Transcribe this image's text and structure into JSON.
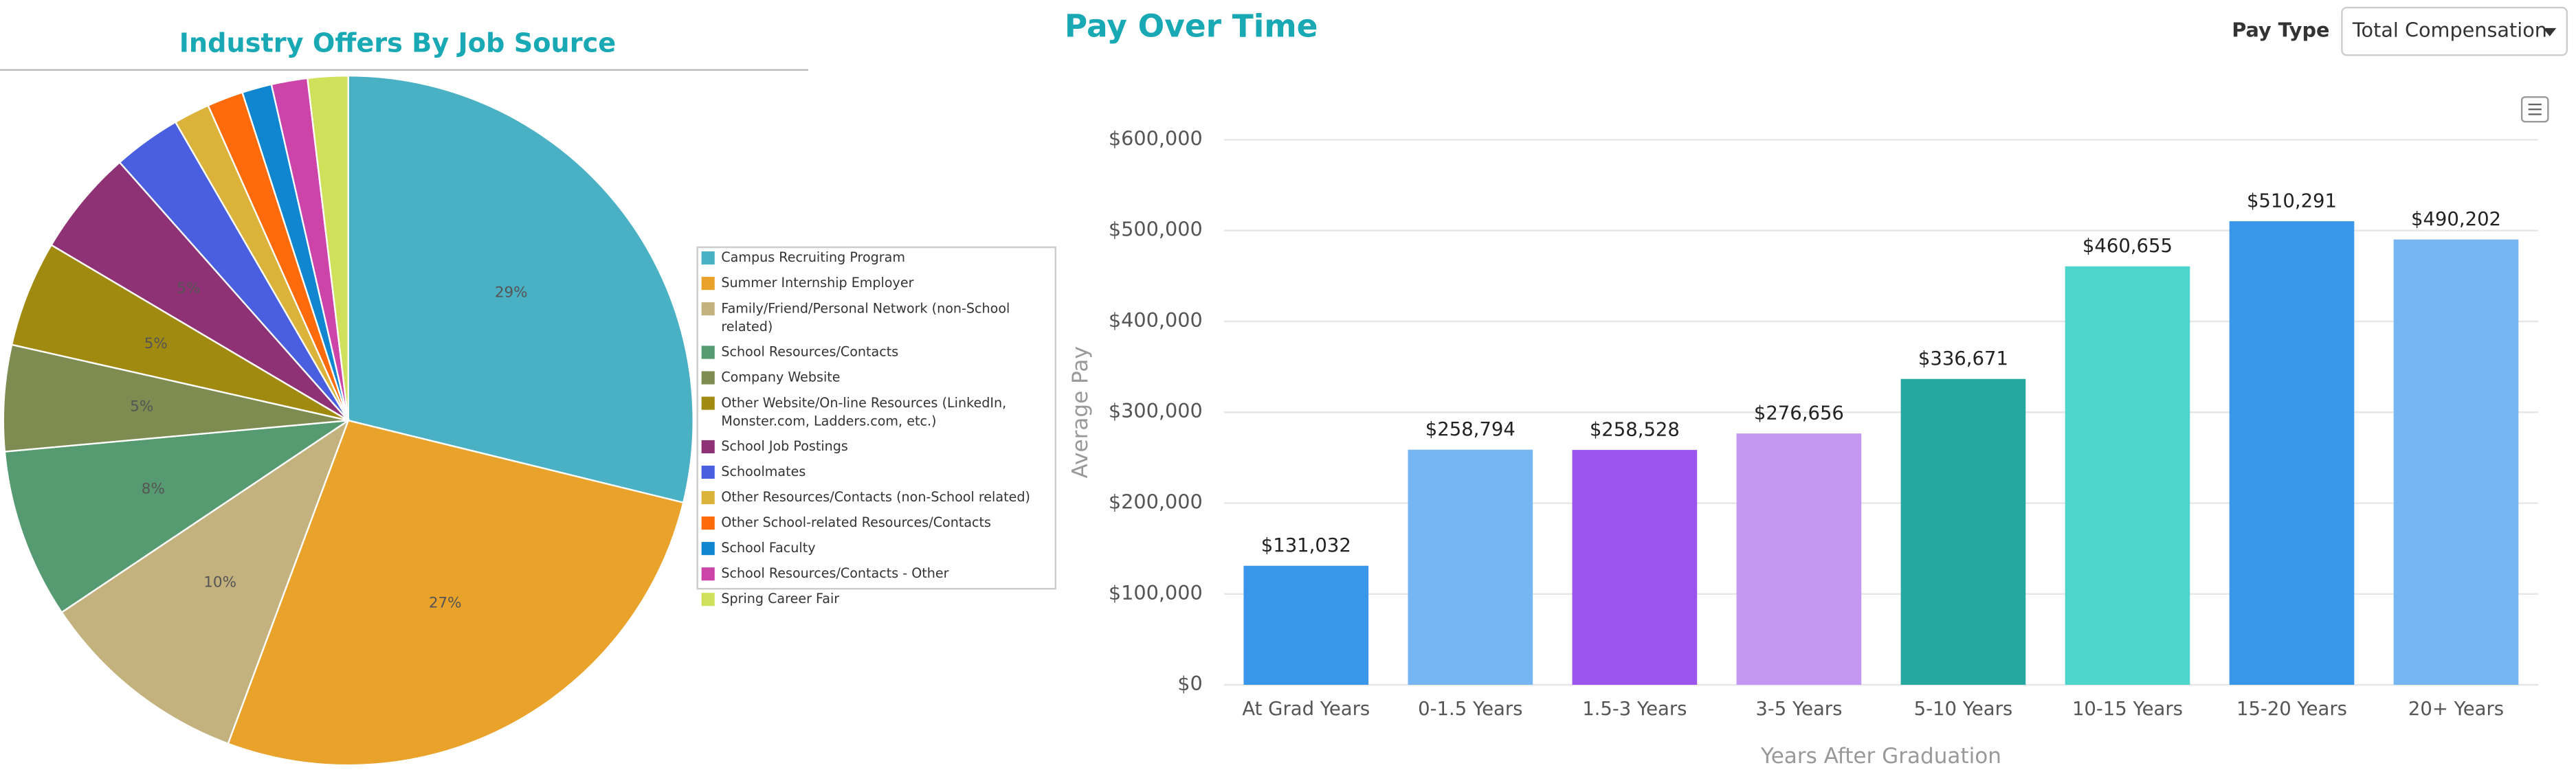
{
  "chart_data": [
    {
      "type": "pie",
      "title": "Industry Offers By Job Source",
      "categories": [
        "Campus Recruiting Program",
        "Summer Internship Employer",
        "Family/Friend/Personal Network (non-School related)",
        "School Resources/Contacts",
        "Company Website",
        "Other Website/On-line Resources (LinkedIn, Monster.com, Ladders.com, etc.)",
        "School Job Postings",
        "Schoolmates",
        "Other Resources/Contacts (non-School related)",
        "Other School-related Resources/Contacts",
        "School Faculty",
        "School Resources/Contacts - Other",
        "Spring Career Fair"
      ],
      "values": [
        29,
        27,
        10,
        8,
        5,
        5,
        5,
        3.2,
        1.7,
        1.7,
        1.4,
        1.7,
        1.9
      ],
      "value_labels": [
        "29%",
        "27%",
        "10%",
        "8%",
        "5%",
        "5%",
        "5%",
        null,
        null,
        null,
        null,
        null,
        null
      ],
      "colors": [
        "#4ab0c4",
        "#e9a22a",
        "#c4b27e",
        "#569a72",
        "#7f8c51",
        "#a08a10",
        "#8f3275",
        "#4a5fe0",
        "#dbb33a",
        "#ff6a0a",
        "#1086d0",
        "#cc44a8",
        "#cfe05a"
      ],
      "legend": "right"
    },
    {
      "type": "bar",
      "title": "Pay Over Time",
      "categories": [
        "At Grad Years",
        "0-1.5 Years",
        "1.5-3 Years",
        "3-5 Years",
        "5-10 Years",
        "10-15 Years",
        "15-20 Years",
        "20+ Years"
      ],
      "values": [
        131032,
        258794,
        258528,
        276656,
        336671,
        460655,
        510291,
        490202
      ],
      "value_labels": [
        "$131,032",
        "$258,794",
        "$258,528",
        "$276,656",
        "$336,671",
        "$460,655",
        "$510,291",
        "$490,202"
      ],
      "colors": [
        "#3a96e8",
        "#76b6f2",
        "#9b55ef",
        "#c497f2",
        "#25a8a0",
        "#4dd5cb",
        "#3a96e8",
        "#76b6f2"
      ],
      "x_label": "Years After Graduation",
      "y_label": "Average Pay",
      "ylim": [
        0,
        600000
      ],
      "yticks": [
        {
          "value": 0,
          "label": "$0"
        },
        {
          "value": 100000,
          "label": "$100,000"
        },
        {
          "value": 200000,
          "label": "$200,000"
        },
        {
          "value": 300000,
          "label": "$300,000"
        },
        {
          "value": 400000,
          "label": "$400,000"
        },
        {
          "value": 500000,
          "label": "$500,000"
        },
        {
          "value": 600000,
          "label": "$600,000"
        }
      ],
      "grid": true
    }
  ],
  "controls": {
    "pay_type_label": "Pay Type",
    "pay_type_value": "Total Compensation"
  }
}
